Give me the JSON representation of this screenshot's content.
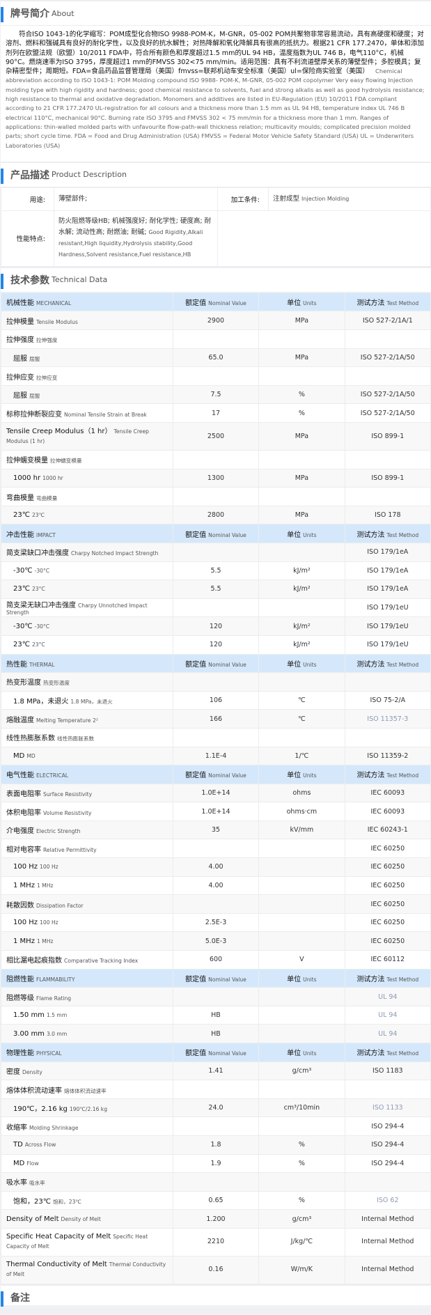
{
  "about": {
    "title_cn": "牌号简介",
    "title_en": "About",
    "text_cn": "符合ISO 1043-1的化学缩写：POM成型化合物ISO 9988-POM-K，M-GNR，05-002 POM共聚物非常容易流动，具有高硬度和硬度；对溶剂、燃料和强碱具有良好的耐化学性，以及良好的抗水解性；对热降解和氧化降解具有很高的抵抗力。根据21 CFR 177.2470，单体和添加剂列在欧盟法规（欧盟）10/2011 FDA中，符合所有颜色和厚度超过1.5 mm的UL 94 HB，温度指数为UL 746 B，电气110°C，机械90°C。燃烧速率为ISO 3795，厚度超过1 mm的FMVSS 302<75 mm/min。适用范围：具有不利流道壁厚关系的薄壁型件；多腔模具；复杂精密型件；周期短。FDA=食品药品监督管理局（美国）fmvss=联邦机动车安全标准（美国）ul=保险商实验室（美国）",
    "text_en": "Chemical abbreviation according to ISO 1043-1: POM Molding compound ISO 9988- POM-K, M-GNR, 05-002 POM copolymer Very easy flowing Injection molding type with high rigidity and hardness; good chemical resistance to solvents, fuel and strong alkalis as well as good hydrolysis resistance; high resistance to thermal and oxidative degradation. Monomers and additives are listed in EU-Regulation (EU) 10/2011 FDA compliant according to 21 CFR 177.2470 UL-registration for all colours and a thickness more than 1.5 mm as UL 94 HB, temperature index UL 746 B electrical 110°C, mechanical 90°C. Burning rate ISO 3795 and FMVSS 302 < 75 mm/min for a thickness more than 1 mm. Ranges of applications: thin-walled molded parts with unfavourite flow-path-wall thickness relation; multicavity moulds; complicated precision molded parts; short cycle time. FDA = Food and Drug Administration (USA) FMVSS = Federal Motor Vehicle Safety Standard (USA) UL = Underwriters Laboratories (USA)"
  },
  "description": {
    "title_cn": "产品描述",
    "title_en": "Product Description",
    "use_label": "用途:",
    "use_value": "薄壁部件;",
    "process_label": "加工条件:",
    "process_cn": "注射成型",
    "process_en": "Injection Molding",
    "features_label": "性能特点:",
    "features_cn": "防火阻燃等级HB; 机械强度好; 耐化学性; 硬度高; 耐水解; 流动性高; 耐燃油; 耐碱;",
    "features_en": "Good Rigidity,Alkali resistant,High liquidity,Hydrolysis stability,Good Hardness,Solvent resistance,Fuel resistance,HB"
  },
  "technical": {
    "title_cn": "技术参数",
    "title_en": "Technical Data",
    "col_value_cn": "额定值",
    "col_value_en": "Nominal Value",
    "col_unit_cn": "单位",
    "col_unit_en": "Units",
    "col_method_cn": "测试方法",
    "col_method_en": "Test Method",
    "sections": [
      {
        "cn": "机械性能",
        "en": "MECHANICAL",
        "rows": [
          {
            "cn": "拉伸模量",
            "en": "Tensile Modulus",
            "value": "2900",
            "unit": "MPa",
            "method": "ISO 527-2/1A/1"
          },
          {
            "cn": "拉伸强度",
            "en": "拉伸强度",
            "value": "",
            "unit": "",
            "method": ""
          },
          {
            "cn": "屈服",
            "en": "屈服",
            "value": "65.0",
            "unit": "MPa",
            "method": "ISO 527-2/1A/50",
            "sub": true
          },
          {
            "cn": "拉伸应变",
            "en": "拉伸应变",
            "value": "",
            "unit": "",
            "method": ""
          },
          {
            "cn": "屈服",
            "en": "屈服",
            "value": "7.5",
            "unit": "%",
            "method": "ISO 527-2/1A/50",
            "sub": true
          },
          {
            "cn": "标称拉伸断裂应变",
            "en": "Nominal Tensile Strain at Break",
            "value": "17",
            "unit": "%",
            "method": "ISO 527-2/1A/50"
          },
          {
            "cn": "Tensile Creep Modulus（1 hr）",
            "en": "Tensile Creep Modulus (1 hr)",
            "value": "2500",
            "unit": "MPa",
            "method": "ISO 899-1",
            "tall": true
          },
          {
            "cn": "拉伸蠕变模量",
            "en": "拉伸蠕变模量",
            "value": "",
            "unit": "",
            "method": ""
          },
          {
            "cn": "1000 hr",
            "en": "1000 hr",
            "value": "1300",
            "unit": "MPa",
            "method": "ISO 899-1",
            "sub": true
          },
          {
            "cn": "弯曲模量",
            "en": "弯曲模量",
            "value": "",
            "unit": "",
            "method": ""
          },
          {
            "cn": "23℃",
            "en": "23℃",
            "value": "2800",
            "unit": "MPa",
            "method": "ISO 178",
            "sub": true
          }
        ]
      },
      {
        "cn": "冲击性能",
        "en": "IMPACT",
        "rows": [
          {
            "cn": "简支梁缺口冲击强度",
            "en": "Charpy Notched Impact Strength",
            "value": "",
            "unit": "",
            "method": "ISO 179/1eA"
          },
          {
            "cn": "-30℃",
            "en": "-30°C",
            "value": "5.5",
            "unit": "kJ/m²",
            "method": "ISO 179/1eA",
            "sub": true
          },
          {
            "cn": "23℃",
            "en": "23°C",
            "value": "5.5",
            "unit": "kJ/m²",
            "method": "ISO 179/1eA",
            "sub": true
          },
          {
            "cn": "简支梁无缺口冲击强度",
            "en": "Charpy Unnotched Impact Strength",
            "value": "",
            "unit": "",
            "method": "ISO 179/1eU"
          },
          {
            "cn": "-30℃",
            "en": "-30°C",
            "value": "120",
            "unit": "kJ/m²",
            "method": "ISO 179/1eU",
            "sub": true
          },
          {
            "cn": "23℃",
            "en": "23°C",
            "value": "120",
            "unit": "kJ/m²",
            "method": "ISO 179/1eU",
            "sub": true
          }
        ]
      },
      {
        "cn": "热性能",
        "en": "THERMAL",
        "rows": [
          {
            "cn": "热变形温度",
            "en": "热变形温度",
            "value": "",
            "unit": "",
            "method": ""
          },
          {
            "cn": "1.8 MPa，未退火",
            "en": "1.8 MPa，未退火",
            "value": "106",
            "unit": "℃",
            "method": "ISO 75-2/A",
            "sub": true
          },
          {
            "cn": "熔融温度",
            "en": "Melting Temperature  2²",
            "value": "166",
            "unit": "℃",
            "method": "ISO 11357-3",
            "muted": true
          },
          {
            "cn": "线性热膨胀系数",
            "en": "线性热膨胀系数",
            "value": "",
            "unit": "",
            "method": ""
          },
          {
            "cn": "MD",
            "en": "MD",
            "value": "1.1E-4",
            "unit": "1/℃",
            "method": "ISO 11359-2",
            "sub": true
          }
        ]
      },
      {
        "cn": "电气性能",
        "en": "ELECTRICAL",
        "rows": [
          {
            "cn": "表面电阻率",
            "en": "Surface Resistivity",
            "value": "1.0E+14",
            "unit": "ohms",
            "method": "IEC 60093"
          },
          {
            "cn": "体积电阻率",
            "en": "Volume Resistivity",
            "value": "1.0E+14",
            "unit": "ohms·cm",
            "method": "IEC 60093"
          },
          {
            "cn": "介电强度",
            "en": "Electric Strength",
            "value": "35",
            "unit": "kV/mm",
            "method": "IEC 60243-1"
          },
          {
            "cn": "相对电容率",
            "en": "Relative Permittivity",
            "value": "",
            "unit": "",
            "method": "IEC 60250"
          },
          {
            "cn": "100 Hz",
            "en": "100 Hz",
            "value": "4.00",
            "unit": "",
            "method": "IEC 60250",
            "sub": true
          },
          {
            "cn": "1 MHz",
            "en": "1 MHz",
            "value": "4.00",
            "unit": "",
            "method": "IEC 60250",
            "sub": true
          },
          {
            "cn": "耗散因数",
            "en": "Dissipation Factor",
            "value": "",
            "unit": "",
            "method": "IEC 60250"
          },
          {
            "cn": "100 Hz",
            "en": "100 Hz",
            "value": "2.5E-3",
            "unit": "",
            "method": "IEC 60250",
            "sub": true
          },
          {
            "cn": "1 MHz",
            "en": "1 MHz",
            "value": "5.0E-3",
            "unit": "",
            "method": "IEC 60250",
            "sub": true
          },
          {
            "cn": "相比漏电起痕指数",
            "en": "Comparative Tracking Index",
            "value": "600",
            "unit": "V",
            "method": "IEC 60112"
          }
        ]
      },
      {
        "cn": "阻燃性能",
        "en": "FLAMMABILITY",
        "rows": [
          {
            "cn": "阻燃等级",
            "en": "Flame Rating",
            "value": "",
            "unit": "",
            "method": "UL 94",
            "muted": true
          },
          {
            "cn": "1.50 mm",
            "en": "1.5 mm",
            "value": "HB",
            "unit": "",
            "method": "UL 94",
            "sub": true,
            "muted": true
          },
          {
            "cn": "3.00 mm",
            "en": "3.0 mm",
            "value": "HB",
            "unit": "",
            "method": "UL 94",
            "sub": true,
            "muted": true
          }
        ]
      },
      {
        "cn": "物理性能",
        "en": "PHYSICAL",
        "rows": [
          {
            "cn": "密度",
            "en": "Density",
            "value": "1.41",
            "unit": "g/cm³",
            "method": "ISO 1183"
          },
          {
            "cn": "熔体体积流动速率",
            "en": "熔体体积流动速率",
            "value": "",
            "unit": "",
            "method": ""
          },
          {
            "cn": "190℃，2.16 kg",
            "en": "190℃/2.16 kg",
            "value": "24.0",
            "unit": "cm³/10min",
            "method": "ISO 1133",
            "sub": true,
            "muted": true
          },
          {
            "cn": "收缩率",
            "en": "Molding Shrinkage",
            "value": "",
            "unit": "",
            "method": "ISO 294-4"
          },
          {
            "cn": "TD",
            "en": "Across Flow",
            "value": "1.8",
            "unit": "%",
            "method": "ISO 294-4",
            "sub": true
          },
          {
            "cn": "MD",
            "en": "Flow",
            "value": "1.9",
            "unit": "%",
            "method": "ISO 294-4",
            "sub": true
          },
          {
            "cn": "吸水率",
            "en": "吸水率",
            "value": "",
            "unit": "",
            "method": ""
          },
          {
            "cn": "饱和，23℃",
            "en": "饱和，23℃",
            "value": "0.65",
            "unit": "%",
            "method": "ISO 62",
            "sub": true,
            "muted": true
          },
          {
            "cn": "Density of Melt",
            "en": "Density of Melt",
            "value": "1.200",
            "unit": "g/cm³",
            "method": "Internal Method"
          },
          {
            "cn": "Specific Heat Capacity of Melt",
            "en": "Specific Heat Capacity of Melt",
            "value": "2210",
            "unit": "J/kg/℃",
            "method": "Internal Method",
            "tall": true
          },
          {
            "cn": "Thermal Conductivity of Melt",
            "en": "Thermal Conductivity of Melt",
            "value": "0.16",
            "unit": "W/m/K",
            "method": "Internal Method",
            "tall": true
          }
        ]
      }
    ]
  },
  "remarks": {
    "title_cn": "备注"
  },
  "colors": {
    "accent": "#2386e6",
    "header_band": "#d5e8fb",
    "muted_method": "#8b9bb3"
  }
}
